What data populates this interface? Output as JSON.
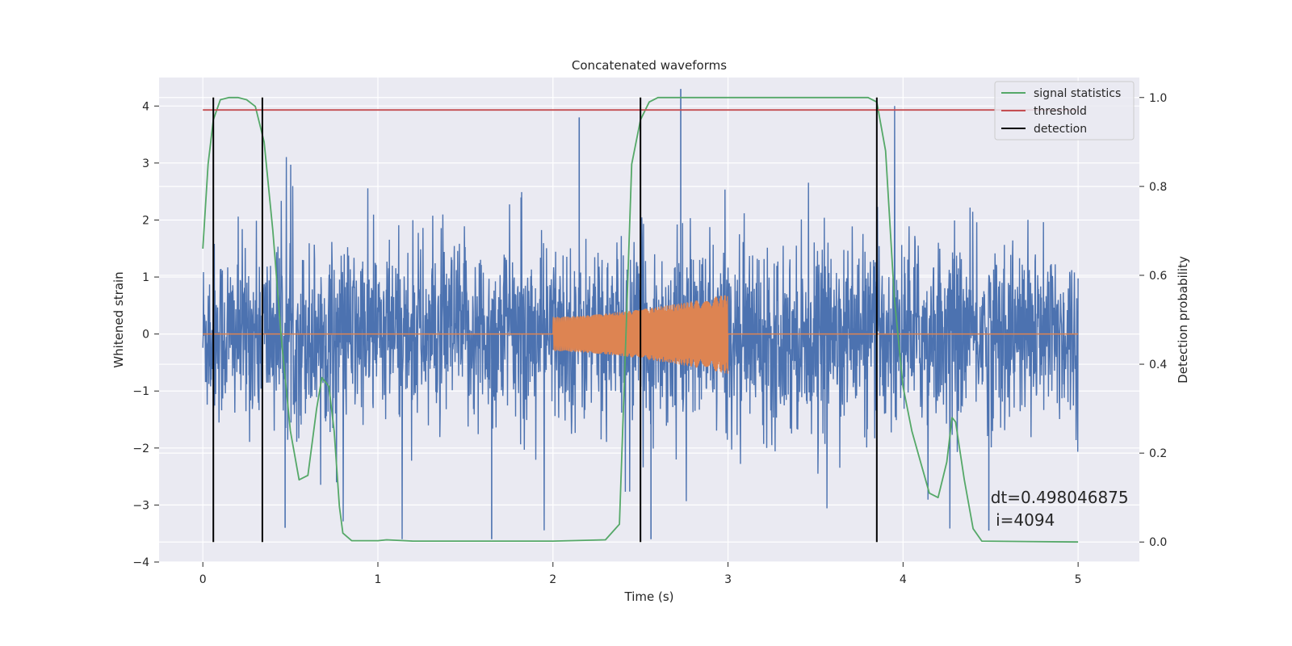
{
  "chart_data": {
    "type": "line",
    "title": "Concatenated waveforms",
    "xlabel": "Time (s)",
    "ylabel": "Whitened strain",
    "ylabel_right": "Detection probability",
    "xlim": [
      -0.25,
      5.35
    ],
    "ylim": [
      -4,
      4.5
    ],
    "ylim_right": [
      -0.045,
      1.045
    ],
    "xticks": [
      0,
      1,
      2,
      3,
      4,
      5
    ],
    "yticks": [
      -4,
      -3,
      -2,
      -1,
      0,
      1,
      2,
      3,
      4
    ],
    "yticks_right": [
      0.0,
      0.2,
      0.4,
      0.6,
      0.8,
      1.0
    ],
    "ytick_labels": [
      "−4",
      "−3",
      "−2",
      "−1",
      "0",
      "1",
      "2",
      "3",
      "4"
    ],
    "yticks_right_labels": [
      "0.0",
      "0.2",
      "0.4",
      "0.6",
      "0.8",
      "1.0"
    ],
    "grid": true,
    "legend_position": "top-right",
    "noise_series": {
      "name": "whitened strain",
      "color": "#4c72b0",
      "x_range": [
        0,
        5
      ],
      "typical_amplitude": 1.2,
      "max_peak": 4.3,
      "min_trough": -3.6
    },
    "injection_series": {
      "color": "#dd8452",
      "baseline": 0,
      "chirp_x_range": [
        2,
        3
      ],
      "amplitude_start": 0.3,
      "amplitude_end": 0.7
    },
    "series": [
      {
        "name": "signal statistics",
        "color": "#55a868",
        "axis": "right",
        "x": [
          0.0,
          0.03,
          0.06,
          0.1,
          0.15,
          0.2,
          0.25,
          0.3,
          0.35,
          0.4,
          0.45,
          0.5,
          0.55,
          0.6,
          0.65,
          0.68,
          0.72,
          0.75,
          0.78,
          0.8,
          0.85,
          1.0,
          1.05,
          1.2,
          1.5,
          2.0,
          2.3,
          2.38,
          2.42,
          2.45,
          2.5,
          2.55,
          2.6,
          3.0,
          3.5,
          3.8,
          3.85,
          3.9,
          3.95,
          4.0,
          4.05,
          4.1,
          4.15,
          4.2,
          4.25,
          4.28,
          4.3,
          4.35,
          4.4,
          4.45,
          5.0
        ],
        "y": [
          0.66,
          0.85,
          0.95,
          0.995,
          1.0,
          1.0,
          0.995,
          0.98,
          0.9,
          0.7,
          0.45,
          0.25,
          0.14,
          0.15,
          0.3,
          0.37,
          0.35,
          0.25,
          0.08,
          0.02,
          0.003,
          0.003,
          0.005,
          0.002,
          0.002,
          0.002,
          0.005,
          0.04,
          0.5,
          0.85,
          0.95,
          0.99,
          1.0,
          1.0,
          1.0,
          1.0,
          0.99,
          0.88,
          0.55,
          0.35,
          0.25,
          0.18,
          0.11,
          0.1,
          0.18,
          0.28,
          0.27,
          0.14,
          0.03,
          0.002,
          0.0
        ]
      },
      {
        "name": "threshold",
        "color": "#c44e52",
        "axis": "left",
        "x": [
          0,
          5
        ],
        "y": [
          3.93,
          3.93
        ]
      }
    ],
    "detection": {
      "name": "detection",
      "color": "#000000",
      "x": [
        0.06,
        0.34,
        2.5,
        3.85
      ],
      "y_range_right": [
        0.0,
        1.0
      ]
    },
    "legend": [
      "signal statistics",
      "threshold",
      "detection"
    ],
    "annotation": {
      "line1": "dt=0.498046875",
      "line2": " i=4094",
      "x": 4.5,
      "y_right": 0.1
    }
  }
}
